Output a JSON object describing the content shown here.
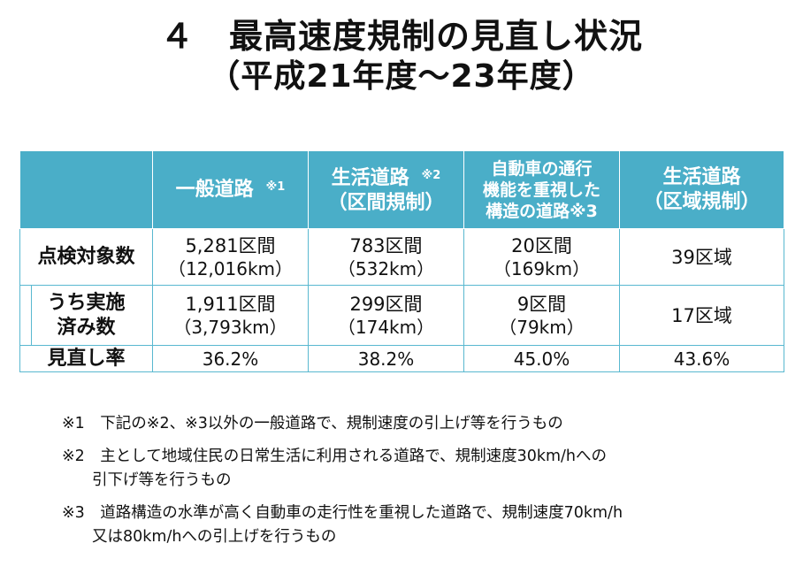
{
  "title": {
    "line1": "４　最高速度規制の見直し状況",
    "line2": "（平成21年度～23年度）"
  },
  "table": {
    "headers": [
      {
        "lines": [
          ""
        ],
        "mark": ""
      },
      {
        "lines": [
          "一般道路"
        ],
        "mark": "※1"
      },
      {
        "lines": [
          "生活道路",
          "（区間規制）"
        ],
        "mark": "※2"
      },
      {
        "lines": [
          "自動車の通行",
          "機能を重視した",
          "構造の道路※3"
        ],
        "mark": ""
      },
      {
        "lines": [
          "生活道路",
          "（区域規制）"
        ],
        "mark": ""
      }
    ],
    "rows": [
      {
        "label_lines": [
          "点検対象数"
        ],
        "cells": [
          [
            "5,281区間",
            "（12,016km）"
          ],
          [
            "783区間",
            "（532km）"
          ],
          [
            "20区間",
            "（169km）"
          ],
          [
            "39区域"
          ]
        ]
      },
      {
        "label_lines": [
          "うち実施",
          "済み数"
        ],
        "cells": [
          [
            "1,911区間",
            "（3,793km）"
          ],
          [
            "299区間",
            "（174km）"
          ],
          [
            "9区間",
            "（79km）"
          ],
          [
            "17区域"
          ]
        ]
      },
      {
        "label_lines": [
          "見直し率"
        ],
        "cells": [
          [
            "36.2%"
          ],
          [
            "38.2%"
          ],
          [
            "45.0%"
          ],
          [
            "43.6%"
          ]
        ]
      }
    ]
  },
  "notes": [
    {
      "lines": [
        "※1　下記の※2、※3以外の一般道路で、規制速度の引上げ等を行うもの"
      ]
    },
    {
      "lines": [
        "※2　主として地域住民の日常生活に利用される道路で、規制速度30km/hへの",
        "引下げ等を行うもの"
      ]
    },
    {
      "lines": [
        "※3　道路構造の水準が高く自動車の走行性を重視した道路で、規制速度70km/h",
        "又は80km/hへの引上げを行うもの"
      ]
    }
  ]
}
